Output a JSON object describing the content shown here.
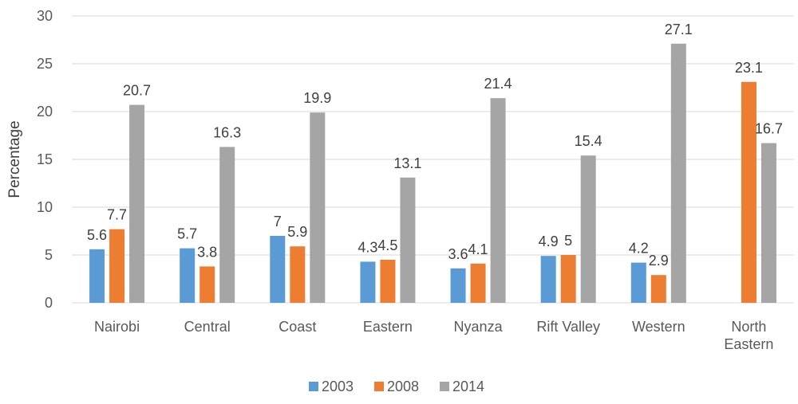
{
  "chart_data": {
    "type": "bar",
    "ylabel": "Percentage",
    "xlabel": "",
    "ylim": [
      0,
      30
    ],
    "yticks": [
      0,
      5,
      10,
      15,
      20,
      25,
      30
    ],
    "grid": true,
    "legend_position": "bottom",
    "categories": [
      [
        "Nairobi"
      ],
      [
        "Central"
      ],
      [
        "Coast"
      ],
      [
        "Eastern"
      ],
      [
        "Nyanza"
      ],
      [
        "Rift Valley"
      ],
      [
        "Western"
      ],
      [
        "North",
        "Eastern"
      ]
    ],
    "series": [
      {
        "name": "2003",
        "color": "#5b9bd5",
        "values": [
          5.6,
          5.7,
          7,
          4.3,
          3.6,
          4.9,
          4.2,
          null
        ]
      },
      {
        "name": "2008",
        "color": "#ed7d31",
        "values": [
          7.7,
          3.8,
          5.9,
          4.5,
          4.1,
          5,
          2.9,
          23.1
        ]
      },
      {
        "name": "2014",
        "color": "#a5a5a5",
        "values": [
          20.7,
          16.3,
          19.9,
          13.1,
          21.4,
          15.4,
          27.1,
          16.7
        ]
      }
    ]
  }
}
